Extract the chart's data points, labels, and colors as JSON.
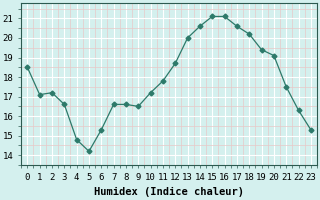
{
  "x": [
    0,
    1,
    2,
    3,
    4,
    5,
    6,
    7,
    8,
    9,
    10,
    11,
    12,
    13,
    14,
    15,
    16,
    17,
    18,
    19,
    20,
    21,
    22,
    23
  ],
  "y": [
    18.5,
    17.1,
    17.2,
    16.6,
    14.8,
    14.2,
    15.3,
    16.6,
    16.6,
    16.5,
    17.2,
    17.8,
    18.7,
    20.0,
    20.6,
    21.1,
    21.1,
    20.6,
    20.2,
    19.4,
    19.1,
    17.5,
    16.3,
    15.3
  ],
  "line_color": "#2d7a6a",
  "marker": "D",
  "marker_size": 2.5,
  "bg_color": "#d4f0ee",
  "grid_major_color": "#ffffff",
  "grid_minor_color": "#e8c8c8",
  "xlabel": "Humidex (Indice chaleur)",
  "ylim": [
    13.5,
    21.8
  ],
  "yticks": [
    14,
    15,
    16,
    17,
    18,
    19,
    20,
    21
  ],
  "xticks": [
    0,
    1,
    2,
    3,
    4,
    5,
    6,
    7,
    8,
    9,
    10,
    11,
    12,
    13,
    14,
    15,
    16,
    17,
    18,
    19,
    20,
    21,
    22,
    23
  ],
  "xlabel_fontsize": 7.5,
  "tick_fontsize": 6.5,
  "xlim": [
    -0.5,
    23.5
  ]
}
